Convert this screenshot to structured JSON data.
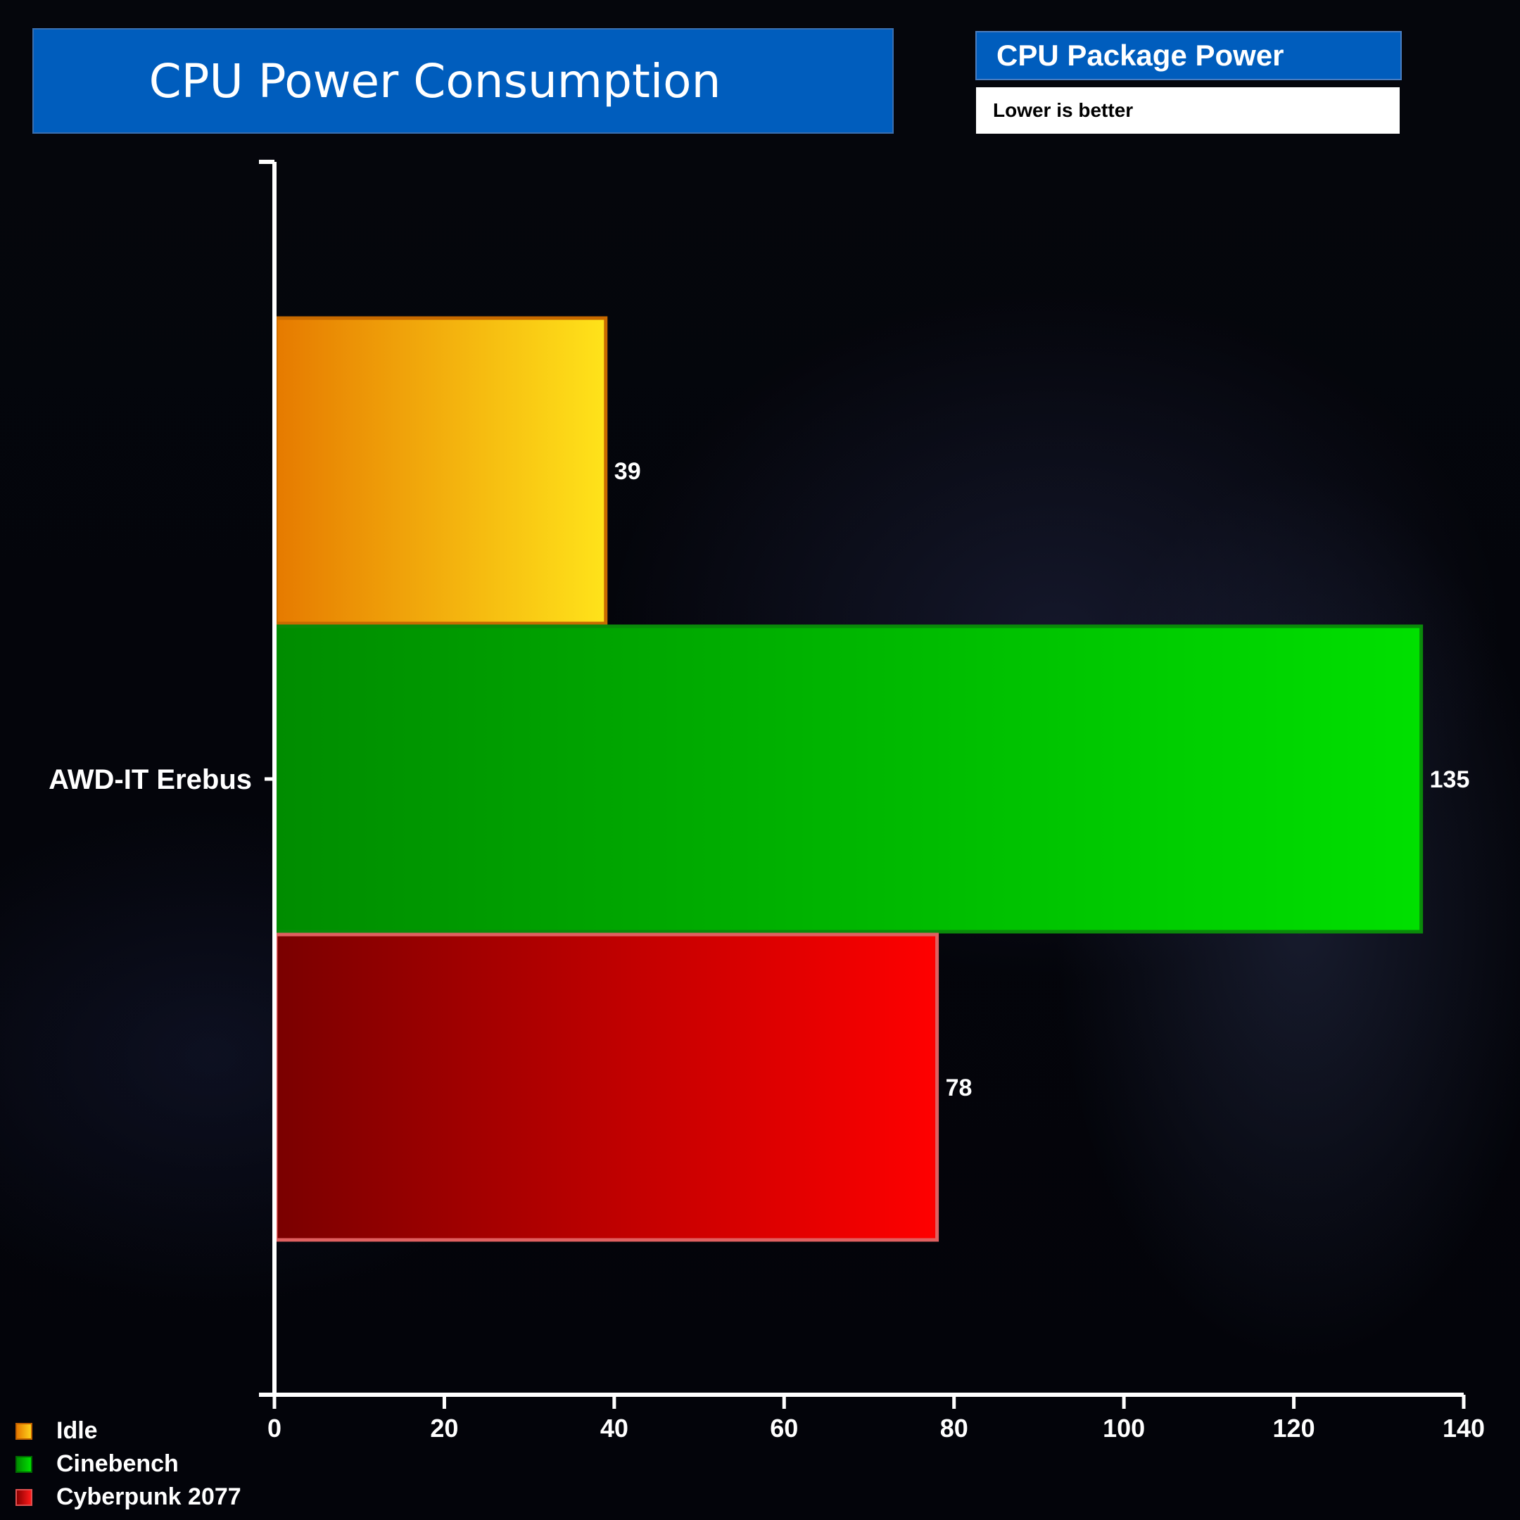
{
  "header": {
    "title": "CPU Power Consumption",
    "subtitle": "CPU Package Power",
    "note": "Lower is better"
  },
  "chart_data": {
    "type": "bar",
    "orientation": "horizontal",
    "categories": [
      "AWD-IT Erebus"
    ],
    "series": [
      {
        "name": "Idle",
        "values": [
          39
        ],
        "color": "#f5a623"
      },
      {
        "name": "Cinebench",
        "values": [
          135
        ],
        "color": "#1fc81f"
      },
      {
        "name": "Cyberpunk 2077",
        "values": [
          78
        ],
        "color": "#e01010"
      }
    ],
    "xlim": [
      0,
      140
    ],
    "xticks": [
      0,
      20,
      40,
      60,
      80,
      100,
      120,
      140
    ],
    "legend": "bottom-left",
    "grid": false
  }
}
